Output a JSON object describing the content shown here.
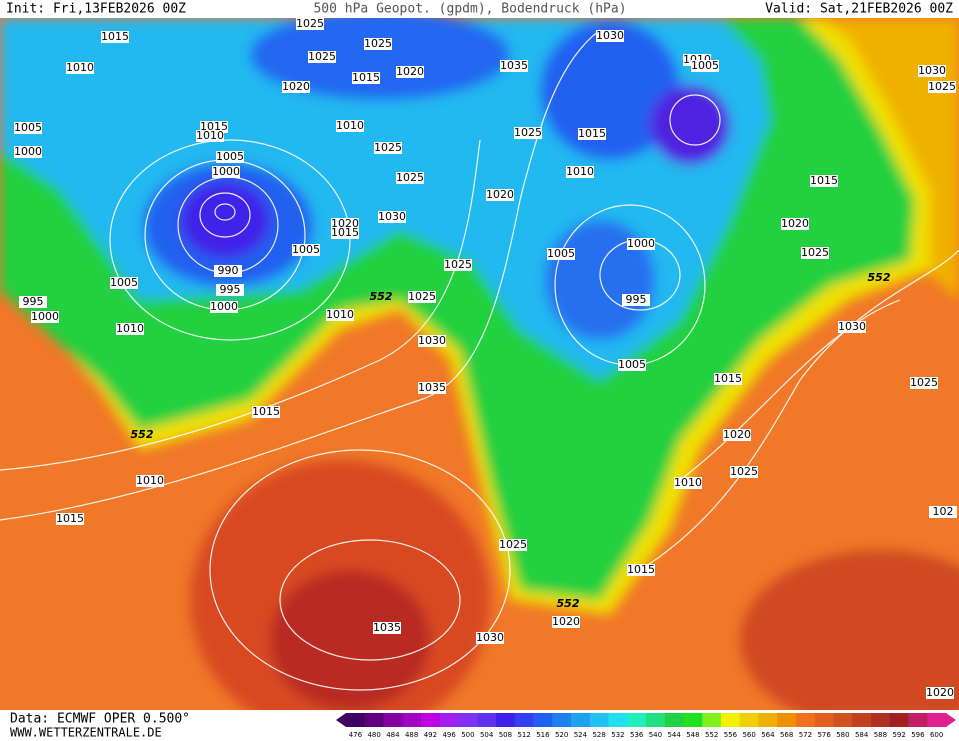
{
  "header": {
    "init": "Init: Fri,13FEB2026 00Z",
    "title": "500 hPa Geopot. (gpdm), Bodendruck (hPa)",
    "valid": "Valid: Sat,21FEB2026 00Z"
  },
  "footer": {
    "source": "Data: ECMWF OPER 0.500°",
    "site": "WWW.WETTERZENTRALE.DE"
  },
  "isobar_labels": [
    1015,
    1025,
    1025,
    1025,
    1020,
    1015,
    1020,
    1010,
    1005,
    1000,
    1015,
    1010,
    1010,
    1025,
    1005,
    1000,
    1025,
    1030,
    1020,
    1015,
    1005,
    990,
    995,
    1000,
    1005,
    995,
    1000,
    1010,
    1010,
    1025,
    1025,
    1030,
    1035,
    1015,
    1010,
    1015,
    1035,
    1030,
    1020,
    1015,
    1025,
    1010,
    1025,
    1020,
    1015,
    1005,
    995,
    1000,
    1005,
    1020,
    1010,
    1025,
    1015,
    1035,
    1030,
    1010,
    1005,
    1015,
    1020,
    1025,
    1030,
    1025,
    1030,
    1025,
    1020,
    102
  ],
  "height_labels": [
    552,
    552,
    552,
    552
  ],
  "legend": {
    "labels": [
      476,
      480,
      484,
      488,
      492,
      496,
      500,
      504,
      508,
      512,
      516,
      520,
      524,
      528,
      532,
      536,
      540,
      544,
      548,
      552,
      556,
      560,
      564,
      568,
      572,
      576,
      580,
      584,
      588,
      592,
      596,
      600
    ],
    "colors": [
      "#400060",
      "#600080",
      "#8000a0",
      "#a000c0",
      "#c000e0",
      "#a020f0",
      "#8030f0",
      "#6030f0",
      "#4020e8",
      "#3040f0",
      "#2060f0",
      "#2080f0",
      "#20a0f0",
      "#20c0f0",
      "#20e0f0",
      "#20f0c0",
      "#20e080",
      "#20d040",
      "#20e020",
      "#80f020",
      "#f0f000",
      "#f0d000",
      "#f0b000",
      "#f09000",
      "#f07020",
      "#e06020",
      "#d05020",
      "#c04020",
      "#b03020",
      "#a02020",
      "#c02060",
      "#e02090"
    ]
  }
}
